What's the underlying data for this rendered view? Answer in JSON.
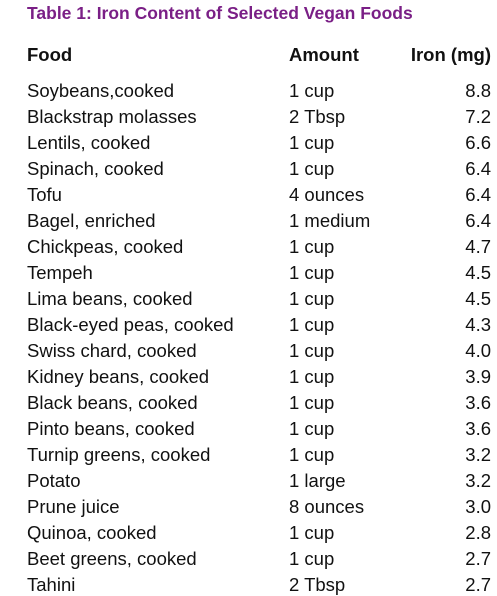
{
  "table": {
    "caption": "Table 1: Iron Content of Selected Vegan Foods",
    "columns": [
      "Food",
      "Amount",
      "Iron (mg)"
    ],
    "rows": [
      {
        "food": "Soybeans,cooked",
        "amount": "1 cup",
        "iron": "8.8"
      },
      {
        "food": "Blackstrap molasses",
        "amount": "2 Tbsp",
        "iron": "7.2"
      },
      {
        "food": "Lentils, cooked",
        "amount": "1 cup",
        "iron": "6.6"
      },
      {
        "food": "Spinach, cooked",
        "amount": "1 cup",
        "iron": "6.4"
      },
      {
        "food": "Tofu",
        "amount": "4 ounces",
        "iron": "6.4"
      },
      {
        "food": "Bagel, enriched",
        "amount": "1 medium",
        "iron": "6.4"
      },
      {
        "food": "Chickpeas, cooked",
        "amount": "1 cup",
        "iron": "4.7"
      },
      {
        "food": "Tempeh",
        "amount": "1 cup",
        "iron": "4.5"
      },
      {
        "food": "Lima beans, cooked",
        "amount": "1 cup",
        "iron": "4.5"
      },
      {
        "food": "Black-eyed peas, cooked",
        "amount": "1 cup",
        "iron": "4.3"
      },
      {
        "food": "Swiss chard, cooked",
        "amount": "1 cup",
        "iron": "4.0"
      },
      {
        "food": "Kidney beans, cooked",
        "amount": "1 cup",
        "iron": "3.9"
      },
      {
        "food": "Black beans, cooked",
        "amount": "1 cup",
        "iron": "3.6"
      },
      {
        "food": "Pinto beans, cooked",
        "amount": "1 cup",
        "iron": "3.6"
      },
      {
        "food": "Turnip greens, cooked",
        "amount": "1 cup",
        "iron": "3.2"
      },
      {
        "food": "Potato",
        "amount": "1 large",
        "iron": "3.2"
      },
      {
        "food": "Prune juice",
        "amount": "8 ounces",
        "iron": "3.0"
      },
      {
        "food": "Quinoa, cooked",
        "amount": "1 cup",
        "iron": "2.8"
      },
      {
        "food": "Beet greens, cooked",
        "amount": "1 cup",
        "iron": "2.7"
      },
      {
        "food": "Tahini",
        "amount": "2 Tbsp",
        "iron": "2.7"
      }
    ]
  },
  "colors": {
    "caption": "#7a1f86",
    "text": "#111111",
    "background": "#ffffff"
  }
}
